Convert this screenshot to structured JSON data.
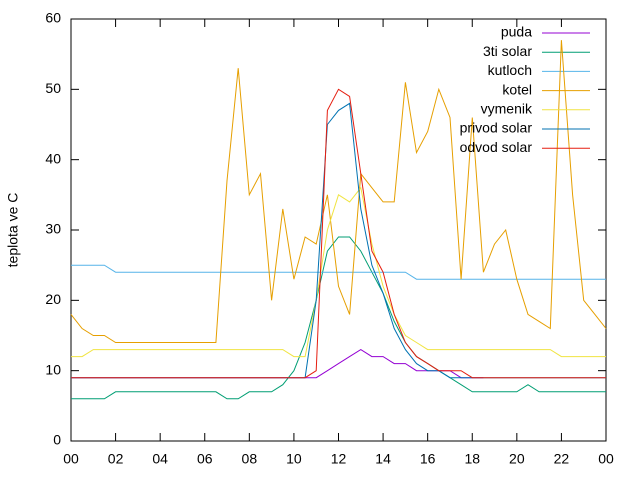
{
  "chart_data": {
    "type": "line",
    "ylabel": "teplota ve C",
    "x": [
      0,
      0.5,
      1,
      1.5,
      2,
      2.5,
      3,
      3.5,
      4,
      4.5,
      5,
      5.5,
      6,
      6.5,
      7,
      7.5,
      8,
      8.5,
      9,
      9.5,
      10,
      10.5,
      11,
      11.5,
      12,
      12.5,
      13,
      13.5,
      14,
      14.5,
      15,
      15.5,
      16,
      16.5,
      17,
      17.5,
      18,
      18.5,
      19,
      19.5,
      20,
      20.5,
      21,
      21.5,
      22,
      22.5,
      23,
      23.5,
      24
    ],
    "xlim": [
      0,
      24
    ],
    "xticks": [
      {
        "value": 0,
        "label": "00"
      },
      {
        "value": 2,
        "label": "02"
      },
      {
        "value": 4,
        "label": "04"
      },
      {
        "value": 6,
        "label": "06"
      },
      {
        "value": 8,
        "label": "08"
      },
      10,
      12,
      14,
      16,
      18,
      20,
      22,
      {
        "value": 24,
        "label": "00"
      }
    ],
    "ylim": [
      0,
      60
    ],
    "yticks": [
      0,
      10,
      20,
      30,
      40,
      50,
      60
    ],
    "legend": "top-right",
    "series": [
      {
        "name": "puda",
        "color": "#9400d3",
        "values": [
          9,
          9,
          9,
          9,
          9,
          9,
          9,
          9,
          9,
          9,
          9,
          9,
          9,
          9,
          9,
          9,
          9,
          9,
          9,
          9,
          9,
          9,
          9,
          10,
          11,
          12,
          13,
          12,
          12,
          11,
          11,
          10,
          10,
          10,
          10,
          9,
          9,
          9,
          null,
          null,
          null,
          null,
          null,
          null,
          null,
          null,
          null,
          null,
          null
        ]
      },
      {
        "name": "3ti solar",
        "color": "#009e73",
        "values": [
          6,
          6,
          6,
          6,
          7,
          7,
          7,
          7,
          7,
          7,
          7,
          7,
          7,
          7,
          6,
          6,
          7,
          7,
          7,
          8,
          10,
          14,
          20,
          27,
          29,
          29,
          27,
          24,
          21,
          17,
          14,
          12,
          11,
          10,
          9,
          8,
          7,
          7,
          7,
          7,
          7,
          8,
          7,
          7,
          7,
          7,
          7,
          7,
          7
        ]
      },
      {
        "name": "kutloch",
        "color": "#56b4e9",
        "values": [
          25,
          25,
          25,
          25,
          24,
          24,
          24,
          24,
          24,
          24,
          24,
          24,
          24,
          24,
          24,
          24,
          24,
          24,
          24,
          24,
          24,
          24,
          24,
          24,
          24,
          24,
          24,
          24,
          24,
          24,
          24,
          23,
          23,
          23,
          23,
          23,
          23,
          23,
          23,
          23,
          23,
          23,
          23,
          23,
          23,
          23,
          23,
          23,
          23
        ]
      },
      {
        "name": "kotel",
        "color": "#e69f00",
        "values": [
          18,
          16,
          15,
          15,
          14,
          14,
          14,
          14,
          14,
          14,
          14,
          14,
          14,
          14,
          37,
          53,
          35,
          38,
          20,
          33,
          23,
          29,
          28,
          35,
          22,
          18,
          38,
          36,
          34,
          34,
          51,
          41,
          44,
          50,
          46,
          23,
          46,
          24,
          28,
          30,
          23,
          18,
          17,
          16,
          57,
          35,
          20,
          18,
          16
        ]
      },
      {
        "name": "vymenik",
        "color": "#f0e442",
        "values": [
          12,
          12,
          13,
          13,
          13,
          13,
          13,
          13,
          13,
          13,
          13,
          13,
          13,
          13,
          13,
          13,
          13,
          13,
          13,
          13,
          12,
          12,
          20,
          30,
          35,
          34,
          36,
          28,
          22,
          18,
          15,
          14,
          13,
          13,
          13,
          13,
          13,
          13,
          13,
          13,
          13,
          13,
          13,
          13,
          12,
          12,
          12,
          12,
          12
        ]
      },
      {
        "name": "privod solar",
        "color": "#0072b2",
        "values": [
          9,
          9,
          9,
          9,
          9,
          9,
          9,
          9,
          9,
          9,
          9,
          9,
          9,
          9,
          9,
          9,
          9,
          9,
          9,
          9,
          9,
          9,
          20,
          45,
          47,
          48,
          33,
          25,
          21,
          16,
          13,
          11,
          10,
          10,
          9,
          9,
          9,
          9,
          9,
          9,
          9,
          9,
          9,
          9,
          9,
          9,
          9,
          9,
          9
        ]
      },
      {
        "name": "odvod solar",
        "color": "#e51e10",
        "values": [
          9,
          9,
          9,
          9,
          9,
          9,
          9,
          9,
          9,
          9,
          9,
          9,
          9,
          9,
          9,
          9,
          9,
          9,
          9,
          9,
          9,
          9,
          10,
          47,
          50,
          49,
          38,
          27,
          24,
          18,
          14,
          12,
          11,
          10,
          10,
          10,
          9,
          9,
          9,
          9,
          9,
          9,
          9,
          9,
          9,
          9,
          9,
          9,
          9
        ]
      }
    ]
  }
}
